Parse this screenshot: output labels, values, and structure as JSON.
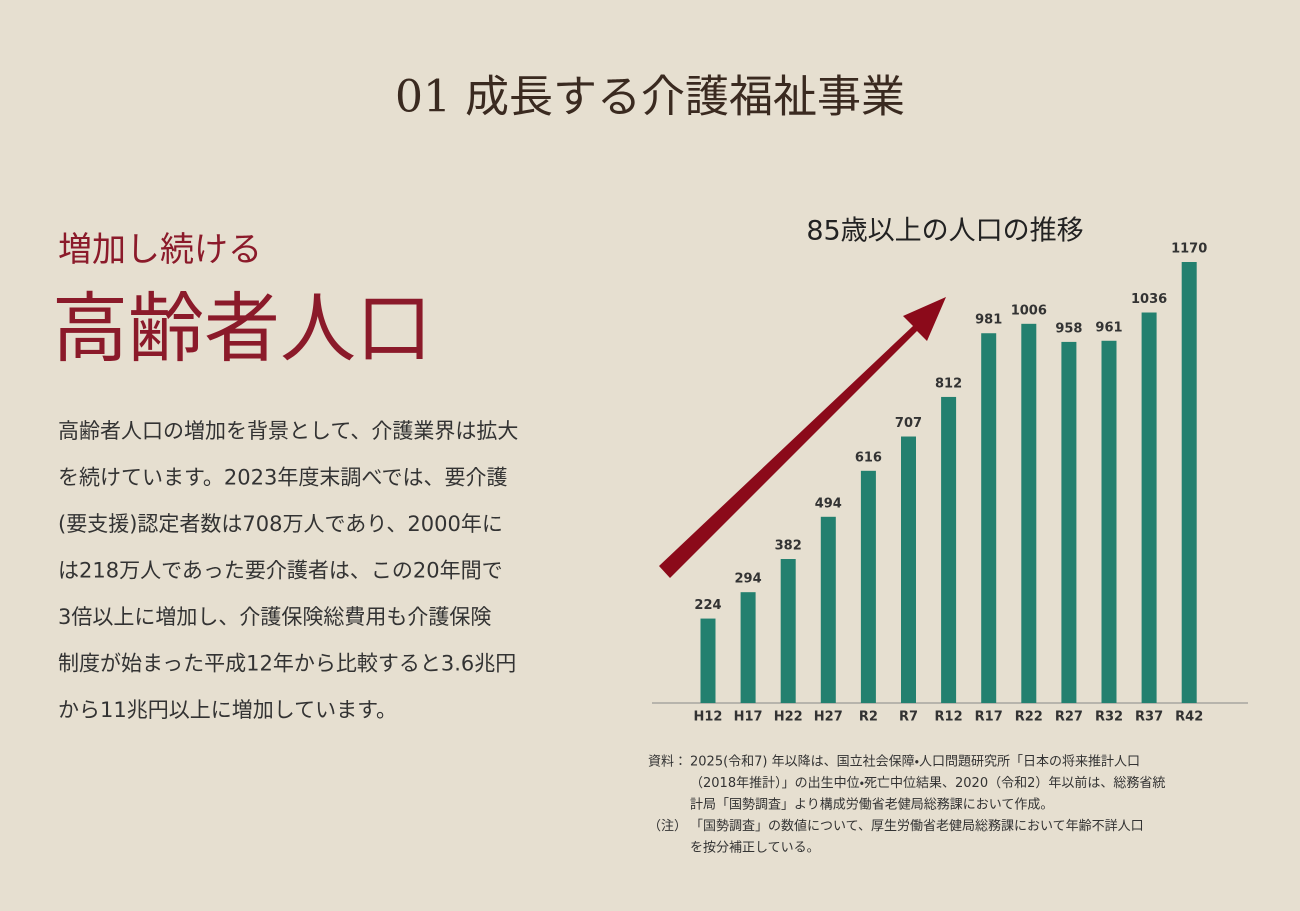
{
  "header": {
    "title": "01 成長する介護福祉事業"
  },
  "left": {
    "kicker": "増加し続ける",
    "headline": "高齢者人口",
    "body": [
      "高齢者人口の増加を背景として、介護業界は拡大",
      "を続けています。2023年度末調べでは、要介護",
      "(要支援)認定者数は708万人であり、2000年に",
      "は218万人であった要介護者は、この20年間で",
      "3倍以上に増加し、介護保険総費用も介護保険",
      "制度が始まった平成12年から比較すると3.6兆円",
      "から11兆円以上に増加しています。"
    ]
  },
  "chart_data": {
    "type": "bar",
    "title": "85歳以上の人口の推移",
    "color": "#23806f",
    "categories": [
      "H12",
      "H17",
      "H22",
      "H27",
      "R2",
      "R7",
      "R12",
      "R17",
      "R22",
      "R27",
      "R32",
      "R37",
      "R42"
    ],
    "values": [
      224,
      294,
      382,
      494,
      616,
      707,
      812,
      981,
      1006,
      958,
      961,
      1036,
      1170
    ]
  },
  "notes": [
    {
      "label": "資料：",
      "lines": [
        "2025(令和7) 年以降は、国立社会保障・人口問題研究所「日本の将来推計人口",
        "（2018年推計）」の出生中位・死亡中位結果、2020（令和2）年以前は、総務省統",
        "計局「国勢調査」より構成労働省老健局総務課において作成。"
      ]
    },
    {
      "label": "（注）",
      "lines": [
        "「国勢調査」の数値について、厚生労働省老健局総務課において年齢不詳人口",
        "を按分補正している。"
      ]
    }
  ]
}
